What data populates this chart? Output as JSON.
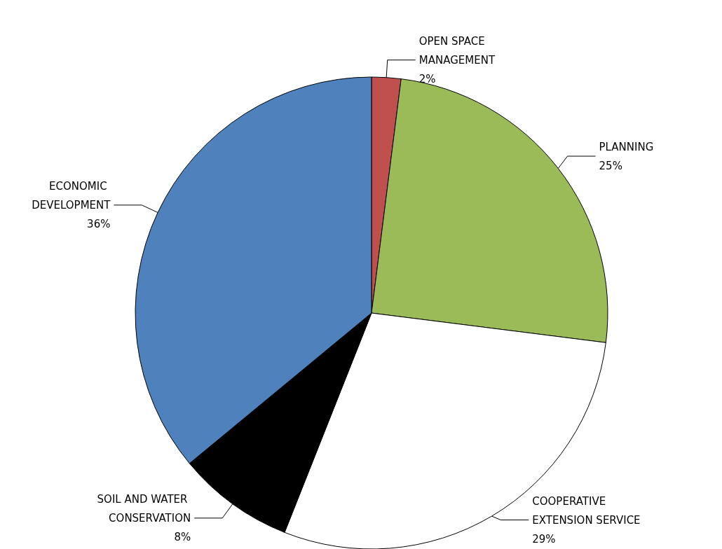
{
  "chart_data": {
    "type": "pie",
    "categories": [
      "OPEN SPACE MANAGEMENT",
      "PLANNING",
      "COOPERATIVE EXTENSION SERVICE",
      "SOIL AND WATER CONSERVATION",
      "ECONOMIC DEVELOPMENT"
    ],
    "values": [
      2,
      25,
      29,
      8,
      36
    ],
    "value_labels": [
      "2%",
      "25%",
      "29%",
      "8%",
      "36%"
    ],
    "colors": [
      "#c0504d",
      "#9bbb59",
      "#ffffff",
      "#000000",
      "#4f81bd"
    ],
    "legend": false
  }
}
